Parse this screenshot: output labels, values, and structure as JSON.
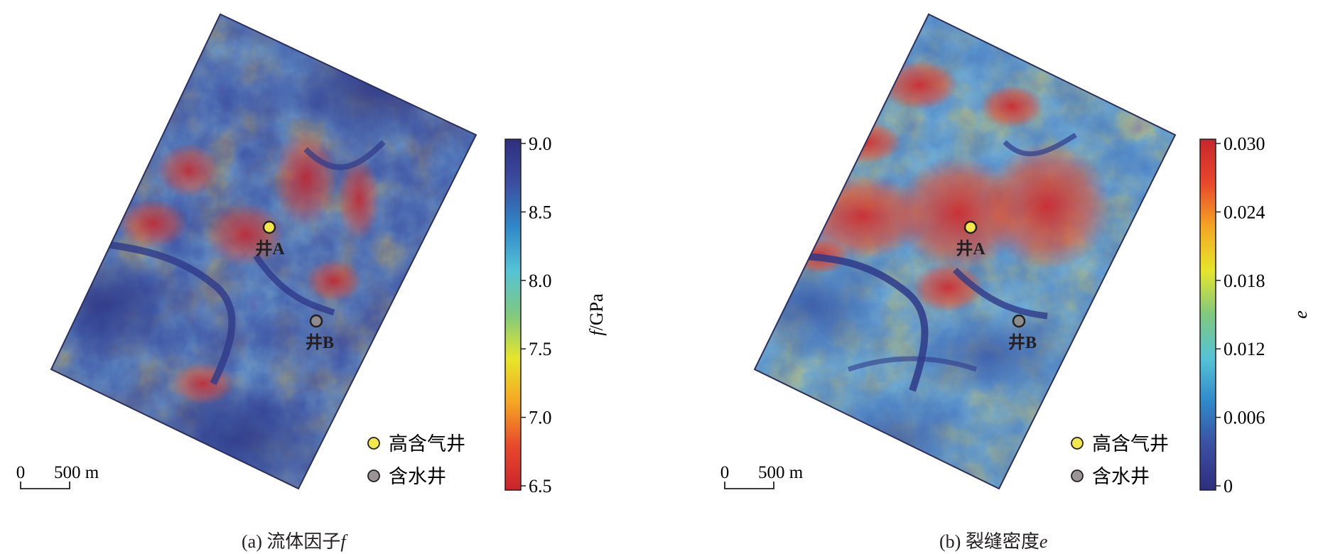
{
  "panels": [
    {
      "id": "a",
      "caption": "(a) 流体因子f",
      "caption_prefix": "(a) 流体因子",
      "caption_symbol": "f",
      "colorbar": {
        "title_symbol": "f",
        "title_unit": "/GPa",
        "ticks": [
          "9.0",
          "8.5",
          "8.0",
          "7.5",
          "7.0",
          "6.5"
        ],
        "reversed": true,
        "colormap": [
          "#2e2e7e",
          "#3b4ea0",
          "#2f88c8",
          "#55c3d6",
          "#7fc97f",
          "#e6e62a",
          "#f5a623",
          "#e8482b",
          "#c8252b"
        ]
      },
      "wells": [
        {
          "label": "井A",
          "type": "high-gas",
          "color": "#f2e84a"
        },
        {
          "label": "井B",
          "type": "water",
          "color": "#8c8c8c"
        }
      ],
      "legend": [
        {
          "label": "高含气井",
          "color": "#f2e84a"
        },
        {
          "label": "含水井",
          "color": "#9a9494"
        }
      ],
      "scale_bar": {
        "start": "0",
        "end": "500 m"
      }
    },
    {
      "id": "b",
      "caption": "(b) 裂缝密度e",
      "caption_prefix": "(b) 裂缝密度",
      "caption_symbol": "e",
      "colorbar": {
        "title_symbol": "e",
        "title_unit": "",
        "ticks": [
          "0.030",
          "0.024",
          "0.018",
          "0.012",
          "0.006",
          "0"
        ],
        "reversed": false,
        "colormap": [
          "#2e2e7e",
          "#3b4ea0",
          "#2f88c8",
          "#55c3d6",
          "#7fc97f",
          "#e6e62a",
          "#f5a623",
          "#e8482b",
          "#c8252b"
        ]
      },
      "wells": [
        {
          "label": "井A",
          "type": "high-gas",
          "color": "#f2e84a"
        },
        {
          "label": "井B",
          "type": "water",
          "color": "#8c8c8c"
        }
      ],
      "legend": [
        {
          "label": "高含气井",
          "color": "#f2e84a"
        },
        {
          "label": "含水井",
          "color": "#9a9494"
        }
      ],
      "scale_bar": {
        "start": "0",
        "end": "500 m"
      }
    }
  ]
}
